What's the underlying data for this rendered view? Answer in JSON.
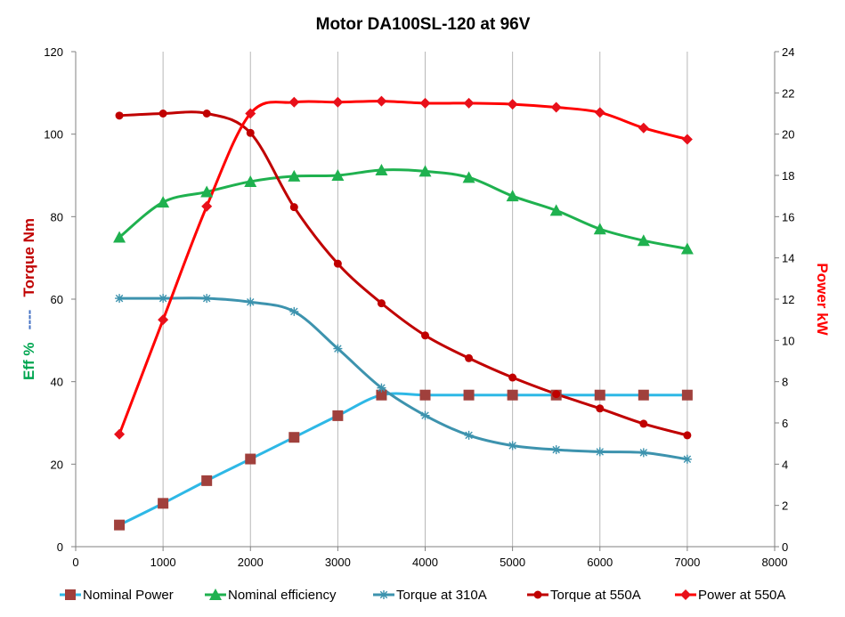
{
  "chart_data": {
    "type": "line",
    "title": "Motor DA100SL-120   at 96V",
    "x": [
      500,
      1000,
      1500,
      2000,
      2500,
      3000,
      3500,
      4000,
      4500,
      5000,
      5500,
      6000,
      6500,
      7000
    ],
    "xlim": [
      0,
      8000
    ],
    "xticks": [
      0,
      1000,
      2000,
      3000,
      4000,
      5000,
      6000,
      7000,
      8000
    ],
    "y_left": {
      "lim": [
        0,
        120
      ],
      "ticks": [
        0,
        20,
        40,
        60,
        80,
        100,
        120
      ],
      "label_parts": [
        {
          "text": "Eff %",
          "color": "#00a651"
        },
        {
          "text": "----",
          "color": "#4472c4"
        },
        {
          "text": "Torque Nm",
          "color": "#c00000"
        }
      ]
    },
    "y_right": {
      "lim": [
        0,
        24
      ],
      "ticks": [
        0,
        2,
        4,
        6,
        8,
        10,
        12,
        14,
        16,
        18,
        20,
        22,
        24
      ],
      "label": "Power kW",
      "label_color": "#ff0000"
    },
    "grid": "vertical",
    "legend_position": "bottom",
    "series": [
      {
        "name": "Nominal Power",
        "axis": "right",
        "line_color": "#2eb8e6",
        "marker": "square",
        "marker_color": "#a0403c",
        "values": [
          1.05,
          2.1,
          3.2,
          4.25,
          5.3,
          6.35,
          7.35,
          7.35,
          7.35,
          7.35,
          7.35,
          7.35,
          7.35,
          7.35
        ]
      },
      {
        "name": "Nominal efficiency",
        "axis": "left",
        "line_color": "#1fb14f",
        "marker": "triangle",
        "marker_color": "#1fb14f",
        "values": [
          75,
          83.5,
          86,
          88.5,
          89.8,
          90,
          91.3,
          91,
          89.5,
          85,
          81.5,
          77,
          74.2,
          72.2
        ]
      },
      {
        "name": "Torque at 310A",
        "axis": "left",
        "line_color": "#3d93ae",
        "marker": "star",
        "marker_color": "#3d93ae",
        "values": [
          60.2,
          60.2,
          60.2,
          59.3,
          57,
          48,
          38.5,
          31.8,
          27,
          24.5,
          23.5,
          23,
          22.8,
          21.2
        ]
      },
      {
        "name": "Torque at 550A",
        "axis": "left",
        "line_color": "#c00000",
        "marker": "circle",
        "marker_color": "#c00000",
        "values": [
          104.5,
          105,
          105,
          100.3,
          82.3,
          68.6,
          59,
          51.2,
          45.7,
          41,
          37,
          33.5,
          29.8,
          27
        ]
      },
      {
        "name": "Power at 550A",
        "axis": "right",
        "line_color": "#ff0000",
        "marker": "diamond",
        "marker_color": "#e8101a",
        "values": [
          5.45,
          11,
          16.5,
          21,
          21.55,
          21.55,
          21.6,
          21.5,
          21.5,
          21.45,
          21.3,
          21.05,
          20.3,
          19.75
        ]
      }
    ]
  }
}
